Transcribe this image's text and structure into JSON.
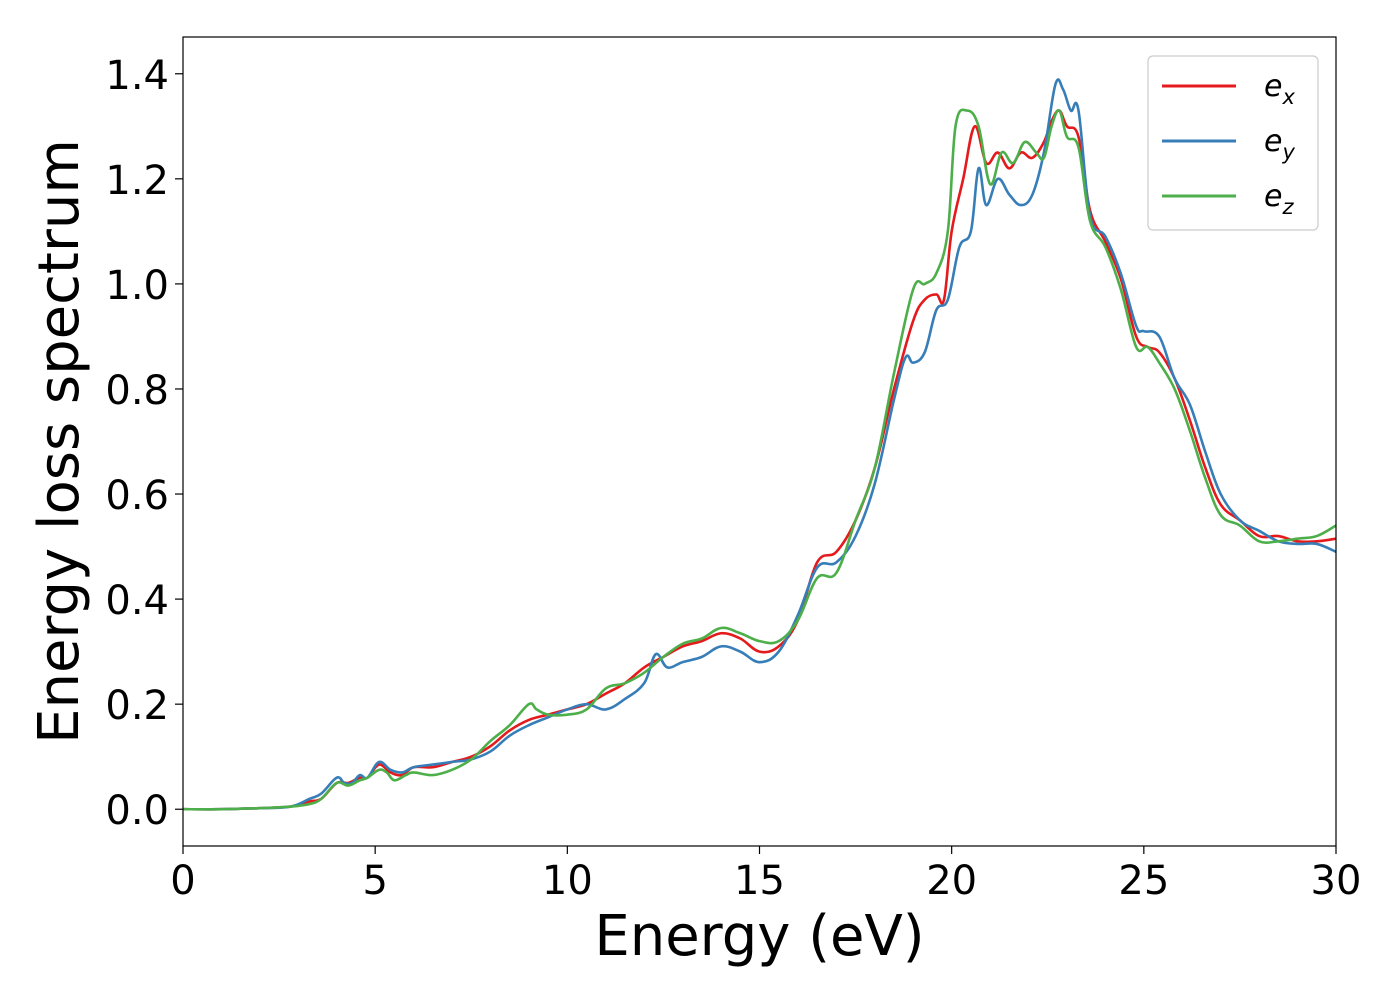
{
  "chart_data": {
    "type": "line",
    "title": "",
    "xlabel": "Energy (eV)",
    "ylabel": "Energy loss spectrum",
    "xlim": [
      0,
      30
    ],
    "ylim": [
      -0.07,
      1.47
    ],
    "xticks": [
      0,
      5,
      10,
      15,
      20,
      25,
      30
    ],
    "xtick_labels": [
      "0",
      "5",
      "10",
      "15",
      "20",
      "25",
      "30"
    ],
    "yticks": [
      0.0,
      0.2,
      0.4,
      0.6,
      0.8,
      1.0,
      1.2,
      1.4
    ],
    "ytick_labels": [
      "0.0",
      "0.2",
      "0.4",
      "0.6",
      "0.8",
      "1.0",
      "1.2",
      "1.4"
    ],
    "grid": false,
    "legend_position": "top-right",
    "series": [
      {
        "name": "e_x",
        "label_base": "e",
        "label_sub": "x",
        "color": "#e41a1c",
        "x": [
          0,
          1,
          2,
          2.8,
          3.3,
          3.6,
          4.0,
          4.3,
          4.6,
          4.8,
          5.1,
          5.4,
          5.7,
          6.0,
          6.5,
          7.0,
          7.5,
          8.0,
          8.5,
          9.0,
          9.5,
          10.0,
          10.5,
          11.0,
          11.5,
          12.0,
          12.5,
          13.0,
          13.5,
          14.0,
          14.5,
          15.0,
          15.5,
          16.0,
          16.5,
          17.0,
          17.5,
          18.0,
          18.5,
          19.0,
          19.3,
          19.6,
          19.8,
          20.0,
          20.3,
          20.6,
          20.9,
          21.2,
          21.5,
          21.8,
          22.1,
          22.4,
          22.6,
          22.8,
          23.0,
          23.3,
          23.6,
          24.0,
          24.4,
          24.8,
          25.1,
          25.4,
          25.8,
          26.2,
          26.6,
          27.0,
          27.5,
          28.0,
          28.5,
          29.0,
          29.5,
          30.0
        ],
        "y": [
          0,
          0,
          0.002,
          0.005,
          0.015,
          0.02,
          0.05,
          0.05,
          0.06,
          0.06,
          0.085,
          0.07,
          0.065,
          0.08,
          0.08,
          0.09,
          0.1,
          0.12,
          0.15,
          0.17,
          0.18,
          0.19,
          0.2,
          0.22,
          0.24,
          0.27,
          0.29,
          0.31,
          0.32,
          0.335,
          0.325,
          0.3,
          0.31,
          0.36,
          0.47,
          0.49,
          0.55,
          0.65,
          0.8,
          0.93,
          0.97,
          0.98,
          0.97,
          1.1,
          1.2,
          1.3,
          1.23,
          1.25,
          1.22,
          1.25,
          1.24,
          1.27,
          1.31,
          1.33,
          1.3,
          1.28,
          1.14,
          1.08,
          1.01,
          0.9,
          0.88,
          0.87,
          0.82,
          0.74,
          0.65,
          0.58,
          0.55,
          0.52,
          0.52,
          0.51,
          0.51,
          0.515
        ]
      },
      {
        "name": "e_y",
        "label_base": "e",
        "label_sub": "y",
        "color": "#377eb8",
        "x": [
          0,
          1,
          2,
          2.8,
          3.3,
          3.6,
          4.0,
          4.2,
          4.4,
          4.6,
          4.8,
          5.1,
          5.4,
          5.7,
          6.0,
          6.5,
          7.0,
          7.5,
          8.0,
          8.5,
          9.0,
          9.5,
          10.0,
          10.5,
          11.0,
          11.5,
          12.0,
          12.3,
          12.6,
          13.0,
          13.5,
          14.0,
          14.5,
          15.0,
          15.5,
          16.0,
          16.5,
          17.0,
          17.5,
          18.0,
          18.5,
          18.8,
          19.0,
          19.3,
          19.6,
          19.9,
          20.2,
          20.5,
          20.7,
          20.9,
          21.2,
          21.5,
          21.8,
          22.1,
          22.4,
          22.7,
          22.9,
          23.1,
          23.3,
          23.6,
          24.0,
          24.4,
          24.8,
          25.0,
          25.4,
          25.8,
          26.2,
          26.6,
          27.0,
          27.5,
          28.0,
          28.5,
          29.0,
          29.5,
          30.0
        ],
        "y": [
          0,
          0,
          0.002,
          0.005,
          0.02,
          0.03,
          0.06,
          0.05,
          0.05,
          0.065,
          0.06,
          0.09,
          0.075,
          0.07,
          0.08,
          0.085,
          0.09,
          0.095,
          0.11,
          0.14,
          0.16,
          0.175,
          0.19,
          0.2,
          0.19,
          0.21,
          0.24,
          0.295,
          0.27,
          0.28,
          0.29,
          0.31,
          0.3,
          0.28,
          0.3,
          0.37,
          0.46,
          0.47,
          0.52,
          0.62,
          0.78,
          0.86,
          0.85,
          0.87,
          0.95,
          0.97,
          1.07,
          1.1,
          1.22,
          1.15,
          1.2,
          1.17,
          1.15,
          1.17,
          1.25,
          1.38,
          1.37,
          1.33,
          1.33,
          1.13,
          1.09,
          1.02,
          0.92,
          0.91,
          0.9,
          0.82,
          0.77,
          0.68,
          0.6,
          0.55,
          0.53,
          0.51,
          0.505,
          0.505,
          0.49
        ]
      },
      {
        "name": "e_z",
        "label_base": "e",
        "label_sub": "z",
        "color": "#4daf4a",
        "x": [
          0,
          1,
          2,
          2.8,
          3.3,
          3.6,
          4.0,
          4.3,
          4.6,
          4.8,
          5.1,
          5.3,
          5.5,
          5.8,
          6.0,
          6.5,
          7.0,
          7.5,
          8.0,
          8.5,
          9.0,
          9.2,
          9.5,
          10.0,
          10.5,
          11.0,
          11.5,
          12.0,
          12.5,
          13.0,
          13.5,
          14.0,
          14.5,
          15.0,
          15.5,
          16.0,
          16.5,
          17.0,
          17.5,
          18.0,
          18.5,
          19.0,
          19.3,
          19.6,
          19.9,
          20.1,
          20.4,
          20.7,
          21.0,
          21.3,
          21.6,
          21.9,
          22.2,
          22.4,
          22.6,
          22.8,
          23.0,
          23.3,
          23.6,
          24.0,
          24.4,
          24.8,
          25.1,
          25.4,
          25.8,
          26.2,
          26.6,
          27.0,
          27.5,
          28.0,
          28.5,
          29.0,
          29.5,
          30.0
        ],
        "y": [
          0,
          0,
          0.002,
          0.005,
          0.01,
          0.02,
          0.05,
          0.045,
          0.055,
          0.06,
          0.075,
          0.07,
          0.055,
          0.065,
          0.07,
          0.065,
          0.075,
          0.095,
          0.13,
          0.16,
          0.2,
          0.19,
          0.18,
          0.18,
          0.19,
          0.23,
          0.24,
          0.26,
          0.29,
          0.315,
          0.325,
          0.345,
          0.335,
          0.32,
          0.32,
          0.36,
          0.44,
          0.45,
          0.55,
          0.65,
          0.83,
          0.99,
          1.0,
          1.02,
          1.1,
          1.3,
          1.33,
          1.3,
          1.19,
          1.25,
          1.23,
          1.27,
          1.25,
          1.24,
          1.3,
          1.33,
          1.28,
          1.26,
          1.12,
          1.07,
          0.99,
          0.88,
          0.88,
          0.85,
          0.8,
          0.72,
          0.63,
          0.56,
          0.54,
          0.51,
          0.51,
          0.515,
          0.52,
          0.54
        ]
      }
    ]
  }
}
